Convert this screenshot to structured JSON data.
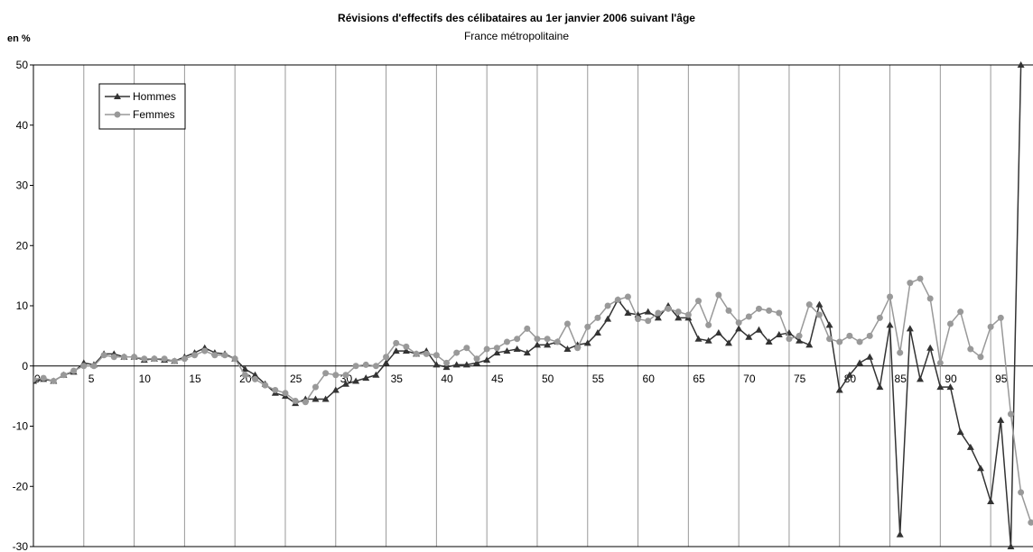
{
  "chart_data": {
    "type": "line",
    "title": "Révisions d'effectifs des célibataires au 1er janvier 2006 suivant l'âge",
    "subtitle": "France métropolitaine",
    "y_label": "en %",
    "x": [
      0,
      1,
      2,
      3,
      4,
      5,
      6,
      7,
      8,
      9,
      10,
      11,
      12,
      13,
      14,
      15,
      16,
      17,
      18,
      19,
      20,
      21,
      22,
      23,
      24,
      25,
      26,
      27,
      28,
      29,
      30,
      31,
      32,
      33,
      34,
      35,
      36,
      37,
      38,
      39,
      40,
      41,
      42,
      43,
      44,
      45,
      46,
      47,
      48,
      49,
      50,
      51,
      52,
      53,
      54,
      55,
      56,
      57,
      58,
      59,
      60,
      61,
      62,
      63,
      64,
      65,
      66,
      67,
      68,
      69,
      70,
      71,
      72,
      73,
      74,
      75,
      76,
      77,
      78,
      79,
      80,
      81,
      82,
      83,
      84,
      85,
      86,
      87,
      88,
      89,
      90,
      91,
      92,
      93,
      94,
      95,
      96,
      97,
      98,
      99
    ],
    "series": [
      {
        "name": "Hommes",
        "color": "#333333",
        "marker": "triangle",
        "values": [
          -2.5,
          -2.2,
          -2.5,
          -1.5,
          -1,
          0.5,
          0.2,
          2,
          2,
          1.5,
          1.5,
          1,
          1.2,
          1,
          0.8,
          1.5,
          2.2,
          3,
          2.2,
          2,
          1.2,
          -0.5,
          -1.5,
          -3,
          -4.5,
          -5,
          -6.2,
          -5.5,
          -5.5,
          -5.5,
          -4,
          -3,
          -2.5,
          -2,
          -1.5,
          0.5,
          2.5,
          2.5,
          2,
          2.5,
          0.2,
          -0.2,
          0.2,
          0.2,
          0.5,
          1,
          2.2,
          2.5,
          2.8,
          2.2,
          3.5,
          3.5,
          4,
          2.8,
          3.5,
          3.8,
          5.5,
          7.8,
          11,
          8.8,
          8.5,
          9,
          8,
          10,
          8,
          8,
          4.5,
          4.2,
          5.5,
          3.8,
          6.2,
          4.8,
          6,
          4,
          5.2,
          5.5,
          4.2,
          3.5,
          10.2,
          6.8,
          -4,
          -1.5,
          0.5,
          1.5,
          -3.5,
          6.8,
          -28,
          6.2,
          -2.2,
          3,
          -3.5,
          -3.5,
          -11,
          -13.5,
          -17,
          -22.5,
          -9,
          -30,
          50,
          null
        ]
      },
      {
        "name": "Femmes",
        "color": "#999999",
        "marker": "circle",
        "values": [
          -2.2,
          -2,
          -2.5,
          -1.5,
          -0.8,
          0,
          0,
          1.8,
          1.5,
          1.5,
          1.5,
          1.2,
          1.2,
          1.2,
          0.8,
          1.2,
          1.8,
          2.5,
          1.8,
          1.8,
          1.2,
          -1.5,
          -2.2,
          -3.2,
          -4,
          -4.5,
          -5.8,
          -6,
          -3.5,
          -1.2,
          -1.5,
          -1.5,
          0,
          0.2,
          0,
          1.5,
          3.8,
          3.2,
          2,
          2,
          1.8,
          0.5,
          2.2,
          3,
          1.2,
          2.8,
          3,
          4,
          4.5,
          6.2,
          4.5,
          4.5,
          4,
          7,
          3,
          6.5,
          8,
          10,
          11,
          11.5,
          7.8,
          7.5,
          8.8,
          9.5,
          9,
          8.5,
          10.8,
          6.8,
          11.8,
          9.2,
          7.2,
          8.2,
          9.5,
          9.2,
          8.8,
          4.5,
          5,
          10.2,
          8.5,
          4.5,
          4,
          5,
          4,
          5,
          8,
          11.5,
          2.2,
          13.8,
          14.5,
          11.2,
          0.5,
          7,
          9,
          2.8,
          1.5,
          6.5,
          8,
          -8,
          -21,
          -26
        ]
      }
    ],
    "xlim": [
      0,
      99.2
    ],
    "xticks": [
      0,
      5,
      10,
      15,
      20,
      25,
      30,
      35,
      40,
      45,
      50,
      55,
      60,
      65,
      70,
      75,
      80,
      85,
      90,
      95
    ],
    "ylim": [
      -30,
      50
    ],
    "yticks": [
      -30,
      -20,
      -10,
      0,
      10,
      20,
      30,
      40,
      50
    ],
    "grid": "x",
    "legend": "upper left"
  }
}
